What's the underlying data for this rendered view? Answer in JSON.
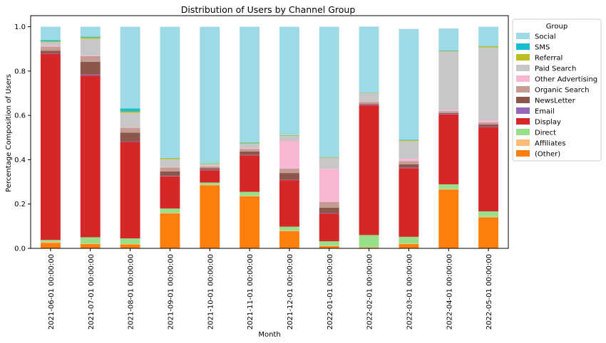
{
  "chart_data": {
    "type": "bar",
    "stacked": true,
    "title": "Distribution of Users by Channel Group",
    "xlabel": "Month",
    "ylabel": "Percentage Composition of Users",
    "ylim": [
      0,
      1.05
    ],
    "yticks": [
      "0.0",
      "0.2",
      "0.4",
      "0.6",
      "0.8",
      "1.0"
    ],
    "legend_title": "Group",
    "legend_position": "outside-right",
    "categories": [
      "2021-06-01 00:00:00",
      "2021-07-01 00:00:00",
      "2021-08-01 00:00:00",
      "2021-09-01 00:00:00",
      "2021-10-01 00:00:00",
      "2021-11-01 00:00:00",
      "2021-12-01 00:00:00",
      "2022-01-01 00:00:00",
      "2022-02-01 00:00:00",
      "2022-03-01 00:00:00",
      "2022-04-01 00:00:00",
      "2022-05-01 00:00:00"
    ],
    "series": [
      {
        "name": "(Other)",
        "color": "#ff7f0e",
        "values": [
          0.025,
          0.02,
          0.018,
          0.158,
          0.285,
          0.235,
          0.078,
          0.01,
          0.003,
          0.02,
          0.265,
          0.14
        ]
      },
      {
        "name": "Affiliates",
        "color": "#ffbb78",
        "values": [
          0.005,
          0.002,
          0.002,
          0.002,
          0.002,
          0.002,
          0.002,
          0.002,
          0.002,
          0.002,
          0.002,
          0.002
        ]
      },
      {
        "name": "Direct",
        "color": "#98df8a",
        "values": [
          0.008,
          0.028,
          0.025,
          0.02,
          0.01,
          0.018,
          0.018,
          0.02,
          0.055,
          0.03,
          0.022,
          0.025
        ]
      },
      {
        "name": "Display",
        "color": "#d62728",
        "values": [
          0.84,
          0.73,
          0.435,
          0.145,
          0.055,
          0.165,
          0.21,
          0.125,
          0.585,
          0.31,
          0.315,
          0.38
        ]
      },
      {
        "name": "Email",
        "color": "#9467bd",
        "values": [
          0.002,
          0.004,
          0.002,
          0.002,
          0.002,
          0.002,
          0.002,
          0.002,
          0.002,
          0.002,
          0.002,
          0.002
        ]
      },
      {
        "name": "NewsLetter",
        "color": "#8c564b",
        "values": [
          0.012,
          0.058,
          0.04,
          0.02,
          0.008,
          0.015,
          0.03,
          0.025,
          0.004,
          0.015,
          0.005,
          0.01
        ]
      },
      {
        "name": "Organic Search",
        "color": "#c49c94",
        "values": [
          0.018,
          0.025,
          0.022,
          0.018,
          0.008,
          0.012,
          0.02,
          0.025,
          0.01,
          0.015,
          0.008,
          0.01
        ]
      },
      {
        "name": "Other Advertising",
        "color": "#f7b6d2",
        "values": [
          0.005,
          0.004,
          0.003,
          0.002,
          0.002,
          0.003,
          0.125,
          0.15,
          0.002,
          0.01,
          0.005,
          0.008
        ]
      },
      {
        "name": "Paid Search",
        "color": "#c7c7c7",
        "values": [
          0.015,
          0.075,
          0.065,
          0.035,
          0.008,
          0.02,
          0.022,
          0.05,
          0.038,
          0.08,
          0.265,
          0.33
        ]
      },
      {
        "name": "Referral",
        "color": "#bcbd22",
        "values": [
          0.004,
          0.006,
          0.006,
          0.005,
          0.003,
          0.003,
          0.003,
          0.002,
          0.002,
          0.004,
          0.002,
          0.005
        ]
      },
      {
        "name": "SMS",
        "color": "#17becf",
        "values": [
          0.006,
          0.003,
          0.013,
          0.001,
          0.001,
          0.002,
          0.001,
          0.001,
          0.001,
          0.002,
          0.002,
          0.001
        ]
      },
      {
        "name": "Social",
        "color": "#9edae5",
        "values": [
          0.06,
          0.045,
          0.369,
          0.592,
          0.616,
          0.523,
          0.489,
          0.588,
          0.297,
          0.5,
          0.099,
          0.087
        ]
      }
    ]
  }
}
